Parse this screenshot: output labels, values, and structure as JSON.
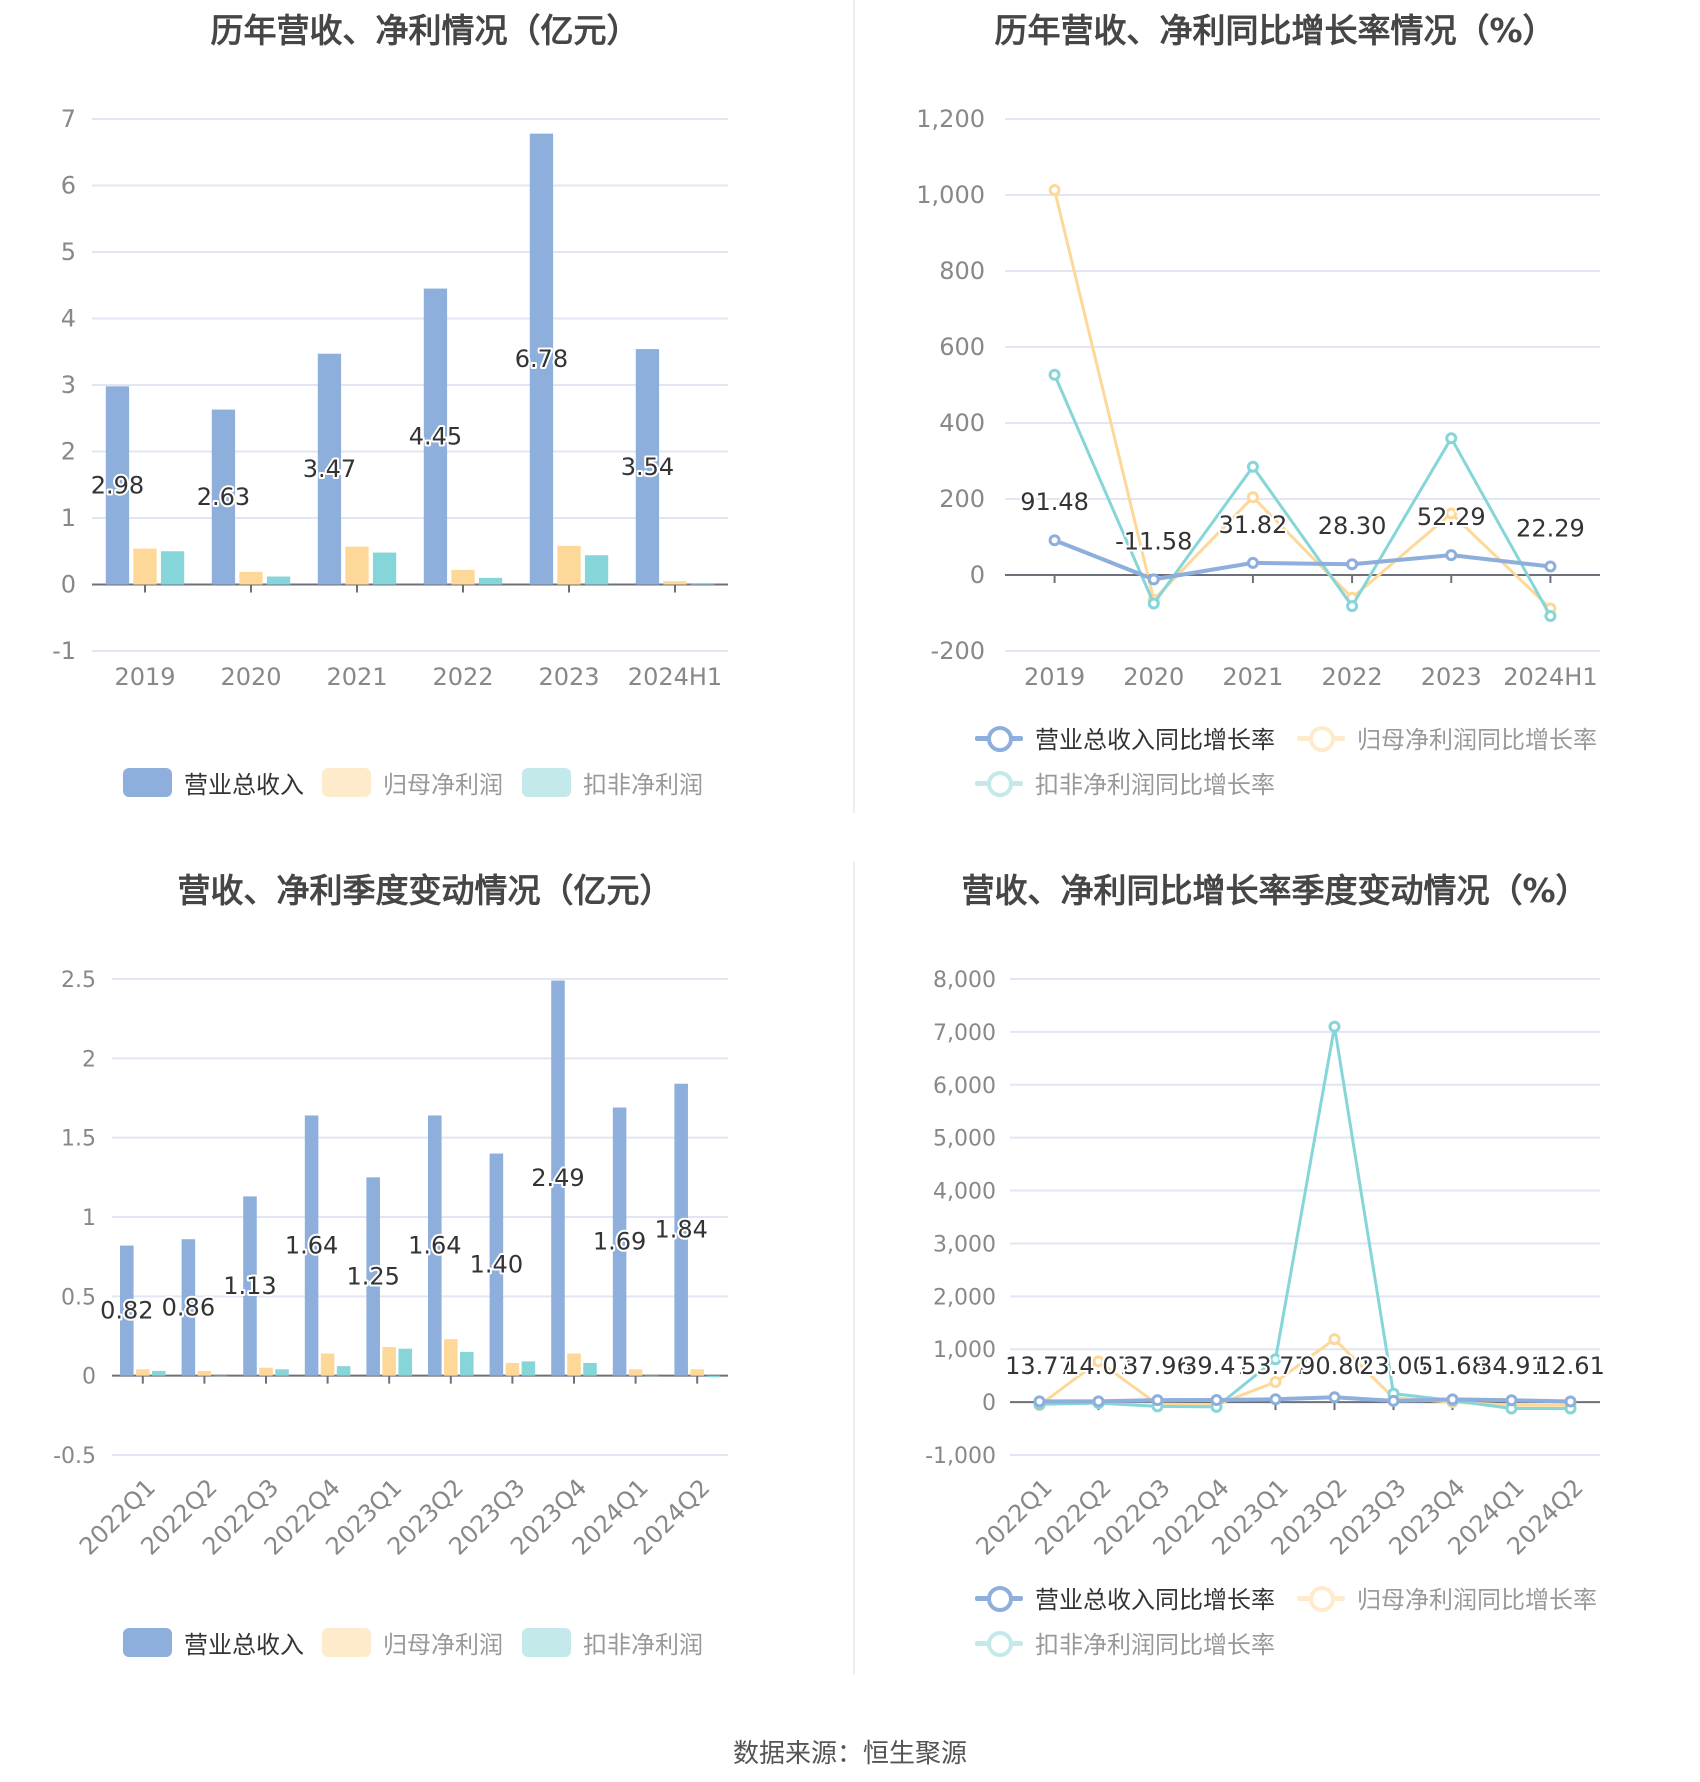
{
  "colors": {
    "revenue": "#8eaedb",
    "net_profit": "#fdd898",
    "deducted_profit": "#86d5d8",
    "revenue_legend": "#8eaedb",
    "net_profit_legend": "#fdebcc",
    "deducted_profit_legend": "#c4e9eb",
    "grid": "#e2e6f2",
    "axis": "#6e7079"
  },
  "panels": {
    "annual_values": {
      "title": "历年营收、净利情况（亿元）"
    },
    "annual_growth": {
      "title": "历年营收、净利同比增长率情况（%）"
    },
    "quarterly_values": {
      "title": "营收、净利季度变动情况（亿元）"
    },
    "quarterly_growth": {
      "title": "营收、净利同比增长率季度变动情况（%）"
    }
  },
  "legends": {
    "values": [
      "营业总收入",
      "归母净利润",
      "扣非净利润"
    ],
    "growth": [
      "营业总收入同比增长率",
      "归母净利润同比增长率",
      "扣非净利润同比增长率"
    ]
  },
  "footer": {
    "source": "数据来源：恒生聚源"
  },
  "chart_data": [
    {
      "id": "annual_values",
      "type": "bar",
      "title": "历年营收、净利情况（亿元）",
      "xlabel": "",
      "ylabel": "",
      "categories": [
        "2019",
        "2020",
        "2021",
        "2022",
        "2023",
        "2024H1"
      ],
      "series": [
        {
          "name": "营业总收入",
          "values": [
            2.98,
            2.63,
            3.47,
            4.45,
            6.78,
            3.54
          ],
          "labels": [
            "2.98",
            "2.63",
            "3.47",
            "4.45",
            "6.78",
            "3.54"
          ]
        },
        {
          "name": "归母净利润",
          "values": [
            0.54,
            0.19,
            0.57,
            0.22,
            0.58,
            0.05
          ]
        },
        {
          "name": "扣非净利润",
          "values": [
            0.5,
            0.12,
            0.48,
            0.1,
            0.44,
            0.01
          ]
        }
      ],
      "yticks": [
        -1,
        0,
        1,
        2,
        3,
        4,
        5,
        6,
        7
      ],
      "ylim": [
        -1,
        7
      ],
      "grid": true,
      "legend_position": "bottom"
    },
    {
      "id": "annual_growth",
      "type": "line",
      "title": "历年营收、净利同比增长率情况（%）",
      "xlabel": "",
      "ylabel": "",
      "categories": [
        "2019",
        "2020",
        "2021",
        "2022",
        "2023",
        "2024H1"
      ],
      "series": [
        {
          "name": "营业总收入同比增长率",
          "values": [
            91.48,
            -11.58,
            31.82,
            28.3,
            52.29,
            22.29
          ],
          "labels": [
            "91.48",
            "-11.58",
            "31.82",
            "28.30",
            "52.29",
            "22.29"
          ]
        },
        {
          "name": "归母净利润同比增长率",
          "values": [
            1013,
            -65,
            205,
            -60,
            162,
            -88
          ]
        },
        {
          "name": "扣非净利润同比增长率",
          "values": [
            527,
            -75,
            285,
            -82,
            360,
            -108
          ]
        }
      ],
      "yticks": [
        -200,
        0,
        200,
        400,
        600,
        800,
        1000,
        1200
      ],
      "ytick_labels": [
        "-200",
        "0",
        "200",
        "400",
        "600",
        "800",
        "1,000",
        "1,200"
      ],
      "ylim": [
        -200,
        1200
      ],
      "grid": true,
      "legend_position": "bottom"
    },
    {
      "id": "quarterly_values",
      "type": "bar",
      "title": "营收、净利季度变动情况（亿元）",
      "xlabel": "",
      "ylabel": "",
      "categories": [
        "2022Q1",
        "2022Q2",
        "2022Q3",
        "2022Q4",
        "2023Q1",
        "2023Q2",
        "2023Q3",
        "2023Q4",
        "2024Q1",
        "2024Q2"
      ],
      "series": [
        {
          "name": "营业总收入",
          "values": [
            0.82,
            0.86,
            1.13,
            1.64,
            1.25,
            1.64,
            1.4,
            2.49,
            1.69,
            1.84
          ],
          "labels": [
            "0.82",
            "0.86",
            "1.13",
            "1.64",
            "1.25",
            "1.64",
            "1.40",
            "2.49",
            "1.69",
            "1.84"
          ]
        },
        {
          "name": "归母净利润",
          "values": [
            0.04,
            0.03,
            0.05,
            0.14,
            0.18,
            0.23,
            0.08,
            0.14,
            0.04,
            0.04
          ]
        },
        {
          "name": "扣非净利润",
          "values": [
            0.03,
            0.0,
            0.04,
            0.06,
            0.17,
            0.15,
            0.09,
            0.08,
            0.0,
            -0.01
          ]
        }
      ],
      "yticks": [
        -0.5,
        0,
        0.5,
        1,
        1.5,
        2,
        2.5
      ],
      "ytick_labels": [
        "-0.5",
        "0",
        "0.5",
        "1",
        "1.5",
        "2",
        "2.5"
      ],
      "ylim": [
        -0.5,
        2.5
      ],
      "grid": true,
      "legend_position": "bottom"
    },
    {
      "id": "quarterly_growth",
      "type": "line",
      "title": "营收、净利同比增长率季度变动情况（%）",
      "xlabel": "",
      "ylabel": "",
      "categories": [
        "2022Q1",
        "2022Q2",
        "2022Q3",
        "2022Q4",
        "2023Q1",
        "2023Q2",
        "2023Q3",
        "2023Q4",
        "2024Q1",
        "2024Q2"
      ],
      "series": [
        {
          "name": "营业总收入同比增长率",
          "values": [
            13.77,
            14.07,
            37.96,
            39.47,
            53.77,
            90.8,
            23.0,
            51.68,
            34.91,
            12.61
          ],
          "labels": [
            "13.77",
            "14.07",
            "37.96",
            "39.47",
            "53.77",
            "90.80",
            "23.00",
            "51.68",
            "34.91",
            "12.61"
          ]
        },
        {
          "name": "归母净利润同比增长率",
          "values": [
            -60,
            770,
            -40,
            -50,
            380,
            1190,
            80,
            0,
            -60,
            -60
          ]
        },
        {
          "name": "扣非净利润同比增长率",
          "values": [
            null,
            null,
            -80,
            -90,
            810,
            7100,
            160,
            30,
            -120,
            -120
          ]
        }
      ],
      "yticks": [
        -1000,
        0,
        1000,
        2000,
        3000,
        4000,
        5000,
        6000,
        7000,
        8000
      ],
      "ytick_labels": [
        "-1,000",
        "0",
        "1,000",
        "2,000",
        "3,000",
        "4,000",
        "5,000",
        "6,000",
        "7,000",
        "8,000"
      ],
      "ylim": [
        -1000,
        8000
      ],
      "grid": true,
      "legend_position": "bottom"
    }
  ]
}
